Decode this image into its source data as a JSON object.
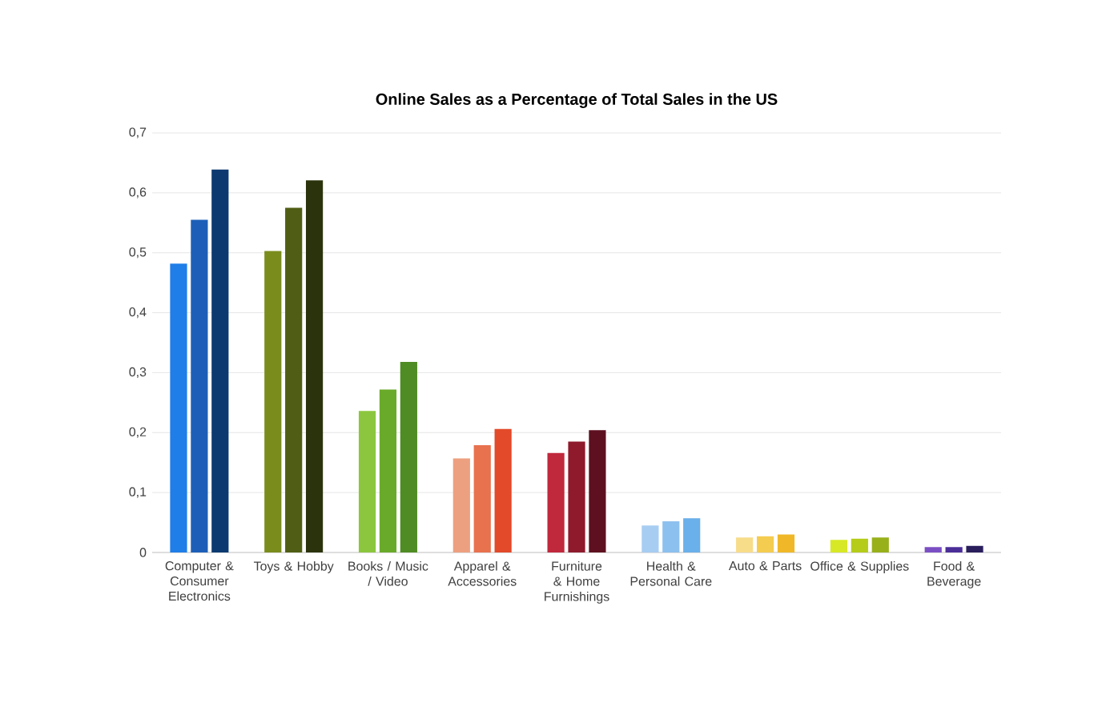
{
  "chart_data": {
    "type": "bar",
    "title": "Online Sales as a Percentage of Total Sales in the US",
    "categories": [
      "Computer & Consumer Electronics",
      "Toys & Hobby",
      "Books / Music / Video",
      "Apparel & Accessories",
      "Furniture & Home Furnishings",
      "Health & Personal Care",
      "Auto & Parts",
      "Office & Supplies",
      "Food & Beverage"
    ],
    "series": [
      {
        "colors": [
          "#1f7ee8",
          "#7a8c1c",
          "#8cc63f",
          "#eda080",
          "#c0283c",
          "#a7cdf2",
          "#f7dc8a",
          "#d7e826",
          "#7b4fc4"
        ],
        "values": [
          0.482,
          0.503,
          0.236,
          0.157,
          0.166,
          0.045,
          0.025,
          0.021,
          0.009
        ]
      },
      {
        "colors": [
          "#1d5fb8",
          "#4f5e14",
          "#6aaa2a",
          "#e8714e",
          "#8e1a2c",
          "#8cc0ee",
          "#f4cc50",
          "#b5cc1a",
          "#4b2d98"
        ],
        "values": [
          0.555,
          0.575,
          0.272,
          0.179,
          0.185,
          0.052,
          0.027,
          0.023,
          0.009
        ]
      },
      {
        "colors": [
          "#0c3a70",
          "#2a330c",
          "#4f8c24",
          "#e24a2a",
          "#5e1020",
          "#6ab0ea",
          "#f0b828",
          "#98b01a",
          "#2a1e5c"
        ],
        "values": [
          0.639,
          0.621,
          0.318,
          0.206,
          0.204,
          0.057,
          0.03,
          0.025,
          0.011
        ]
      }
    ],
    "ylim": [
      0,
      0.7
    ],
    "yticks": [
      0,
      {
        "value": 0.1,
        "label": "0,1"
      },
      {
        "value": 0.2,
        "label": "0,2"
      },
      {
        "value": 0.3,
        "label": "0,3"
      },
      {
        "value": 0.4,
        "label": "0,4"
      },
      {
        "value": 0.5,
        "label": "0,5"
      },
      {
        "value": 0.6,
        "label": "0,6"
      },
      {
        "value": 0.7,
        "label": "0,7"
      }
    ],
    "grid": "y"
  }
}
